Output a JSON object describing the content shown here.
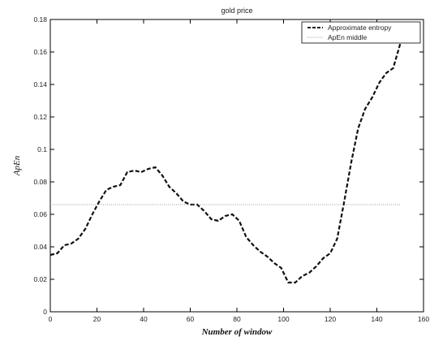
{
  "chart_data": {
    "type": "line",
    "title": "gold price",
    "xlabel": "Number of window",
    "ylabel": "ApEn",
    "xlim": [
      0,
      160
    ],
    "ylim": [
      0,
      0.18
    ],
    "x_ticks": [
      0,
      20,
      40,
      60,
      80,
      100,
      120,
      140,
      160
    ],
    "x_tick_labels": [
      "0",
      "20",
      "40",
      "60",
      "80",
      "100",
      "120",
      "140",
      "160"
    ],
    "y_ticks": [
      0,
      0.02,
      0.04,
      0.06,
      0.08,
      0.1,
      0.12,
      0.14,
      0.16,
      0.18
    ],
    "y_tick_labels": [
      "0",
      "0.02",
      "0.04",
      "0.06",
      "0.08",
      "0.1",
      "0.12",
      "0.14",
      "0.16",
      "0.18"
    ],
    "grid": false,
    "legend_position": "top-right",
    "series": [
      {
        "name": "Approximate entropy",
        "style": "dashed",
        "color": "#111111",
        "x": [
          0,
          3,
          6,
          9,
          12,
          15,
          18,
          21,
          24,
          27,
          30,
          33,
          36,
          39,
          42,
          45,
          48,
          51,
          54,
          57,
          60,
          63,
          66,
          69,
          72,
          75,
          78,
          81,
          84,
          87,
          90,
          93,
          96,
          99,
          102,
          105,
          108,
          111,
          114,
          117,
          120,
          123,
          126,
          129,
          132,
          135,
          138,
          141,
          144,
          147,
          150
        ],
        "y": [
          0.035,
          0.036,
          0.041,
          0.042,
          0.045,
          0.051,
          0.06,
          0.068,
          0.075,
          0.077,
          0.078,
          0.086,
          0.087,
          0.086,
          0.088,
          0.089,
          0.084,
          0.077,
          0.073,
          0.068,
          0.066,
          0.066,
          0.062,
          0.057,
          0.056,
          0.059,
          0.06,
          0.056,
          0.046,
          0.041,
          0.037,
          0.034,
          0.03,
          0.027,
          0.018,
          0.018,
          0.022,
          0.024,
          0.028,
          0.033,
          0.036,
          0.045,
          0.068,
          0.092,
          0.113,
          0.125,
          0.132,
          0.141,
          0.147,
          0.15,
          0.165
        ]
      },
      {
        "name": "ApEn middle",
        "style": "dotted",
        "color": "#999999",
        "x": [
          0,
          150
        ],
        "y": [
          0.066,
          0.066
        ]
      }
    ]
  }
}
